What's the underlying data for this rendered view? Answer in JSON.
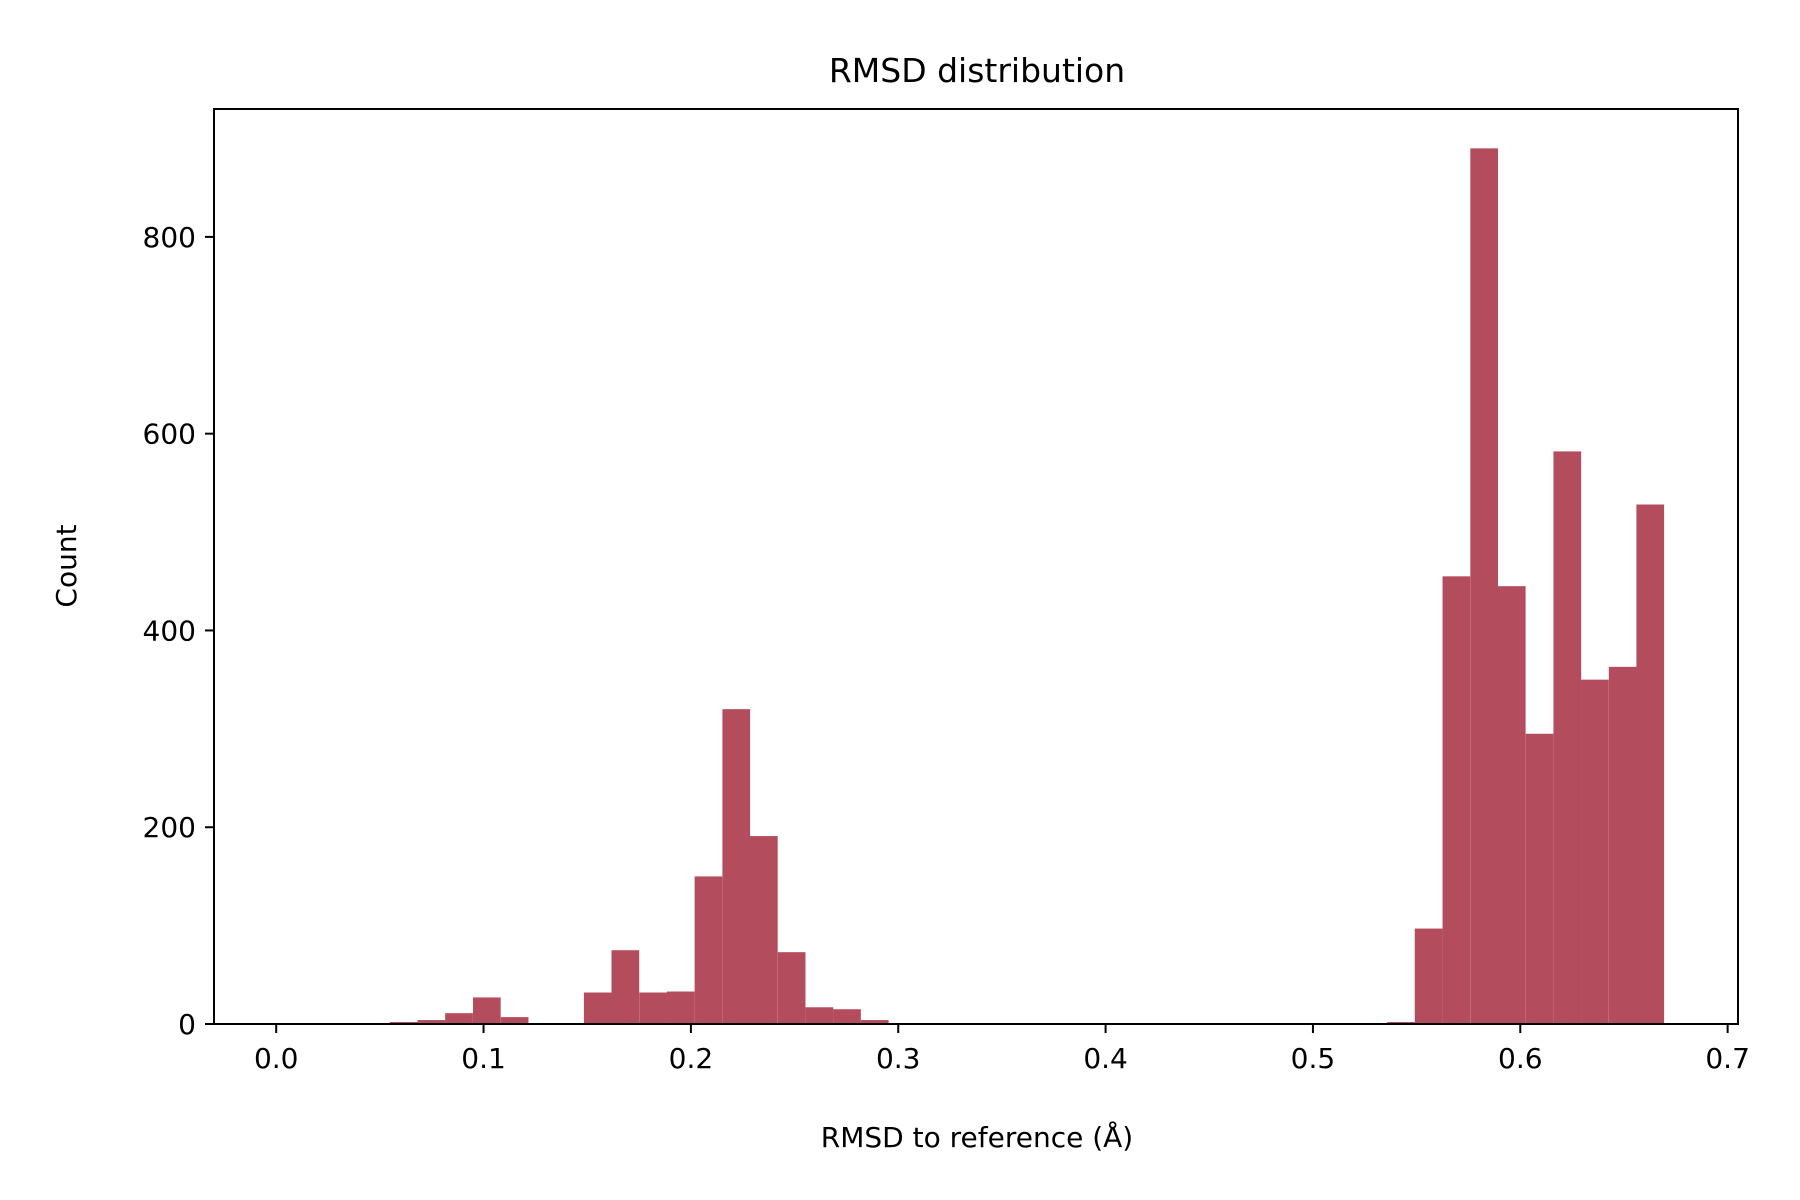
{
  "chart_data": {
    "type": "bar",
    "title": "RMSD distribution",
    "xlabel": "RMSD to reference (Å)",
    "ylabel": "Count",
    "xlim": [
      -0.03,
      0.705
    ],
    "ylim": [
      0,
      930
    ],
    "xticks": [
      0.0,
      0.1,
      0.2,
      0.3,
      0.4,
      0.5,
      0.6,
      0.7
    ],
    "xtick_labels": [
      "0.0",
      "0.1",
      "0.2",
      "0.3",
      "0.4",
      "0.5",
      "0.6",
      "0.7"
    ],
    "yticks": [
      0,
      200,
      400,
      600,
      800
    ],
    "ytick_labels": [
      "0",
      "200",
      "400",
      "600",
      "800"
    ],
    "grid": false,
    "bar_color": "#b34c5c",
    "bin_width": 0.01336,
    "bins": [
      {
        "x0": 0.0548,
        "count": 2
      },
      {
        "x0": 0.0682,
        "count": 4
      },
      {
        "x0": 0.0815,
        "count": 11
      },
      {
        "x0": 0.0949,
        "count": 27
      },
      {
        "x0": 0.1083,
        "count": 7
      },
      {
        "x0": 0.1216,
        "count": 0
      },
      {
        "x0": 0.135,
        "count": 0
      },
      {
        "x0": 0.1484,
        "count": 32
      },
      {
        "x0": 0.1617,
        "count": 75
      },
      {
        "x0": 0.1751,
        "count": 32
      },
      {
        "x0": 0.1884,
        "count": 33
      },
      {
        "x0": 0.2018,
        "count": 150
      },
      {
        "x0": 0.2152,
        "count": 320
      },
      {
        "x0": 0.2285,
        "count": 191
      },
      {
        "x0": 0.2419,
        "count": 73
      },
      {
        "x0": 0.2553,
        "count": 17
      },
      {
        "x0": 0.2686,
        "count": 15
      },
      {
        "x0": 0.282,
        "count": 4
      },
      {
        "x0": 0.5358,
        "count": 2
      },
      {
        "x0": 0.5491,
        "count": 97
      },
      {
        "x0": 0.5625,
        "count": 455
      },
      {
        "x0": 0.5759,
        "count": 890
      },
      {
        "x0": 0.5892,
        "count": 445
      },
      {
        "x0": 0.6026,
        "count": 295
      },
      {
        "x0": 0.616,
        "count": 582
      },
      {
        "x0": 0.6293,
        "count": 350
      },
      {
        "x0": 0.6427,
        "count": 363
      },
      {
        "x0": 0.656,
        "count": 528
      }
    ]
  }
}
